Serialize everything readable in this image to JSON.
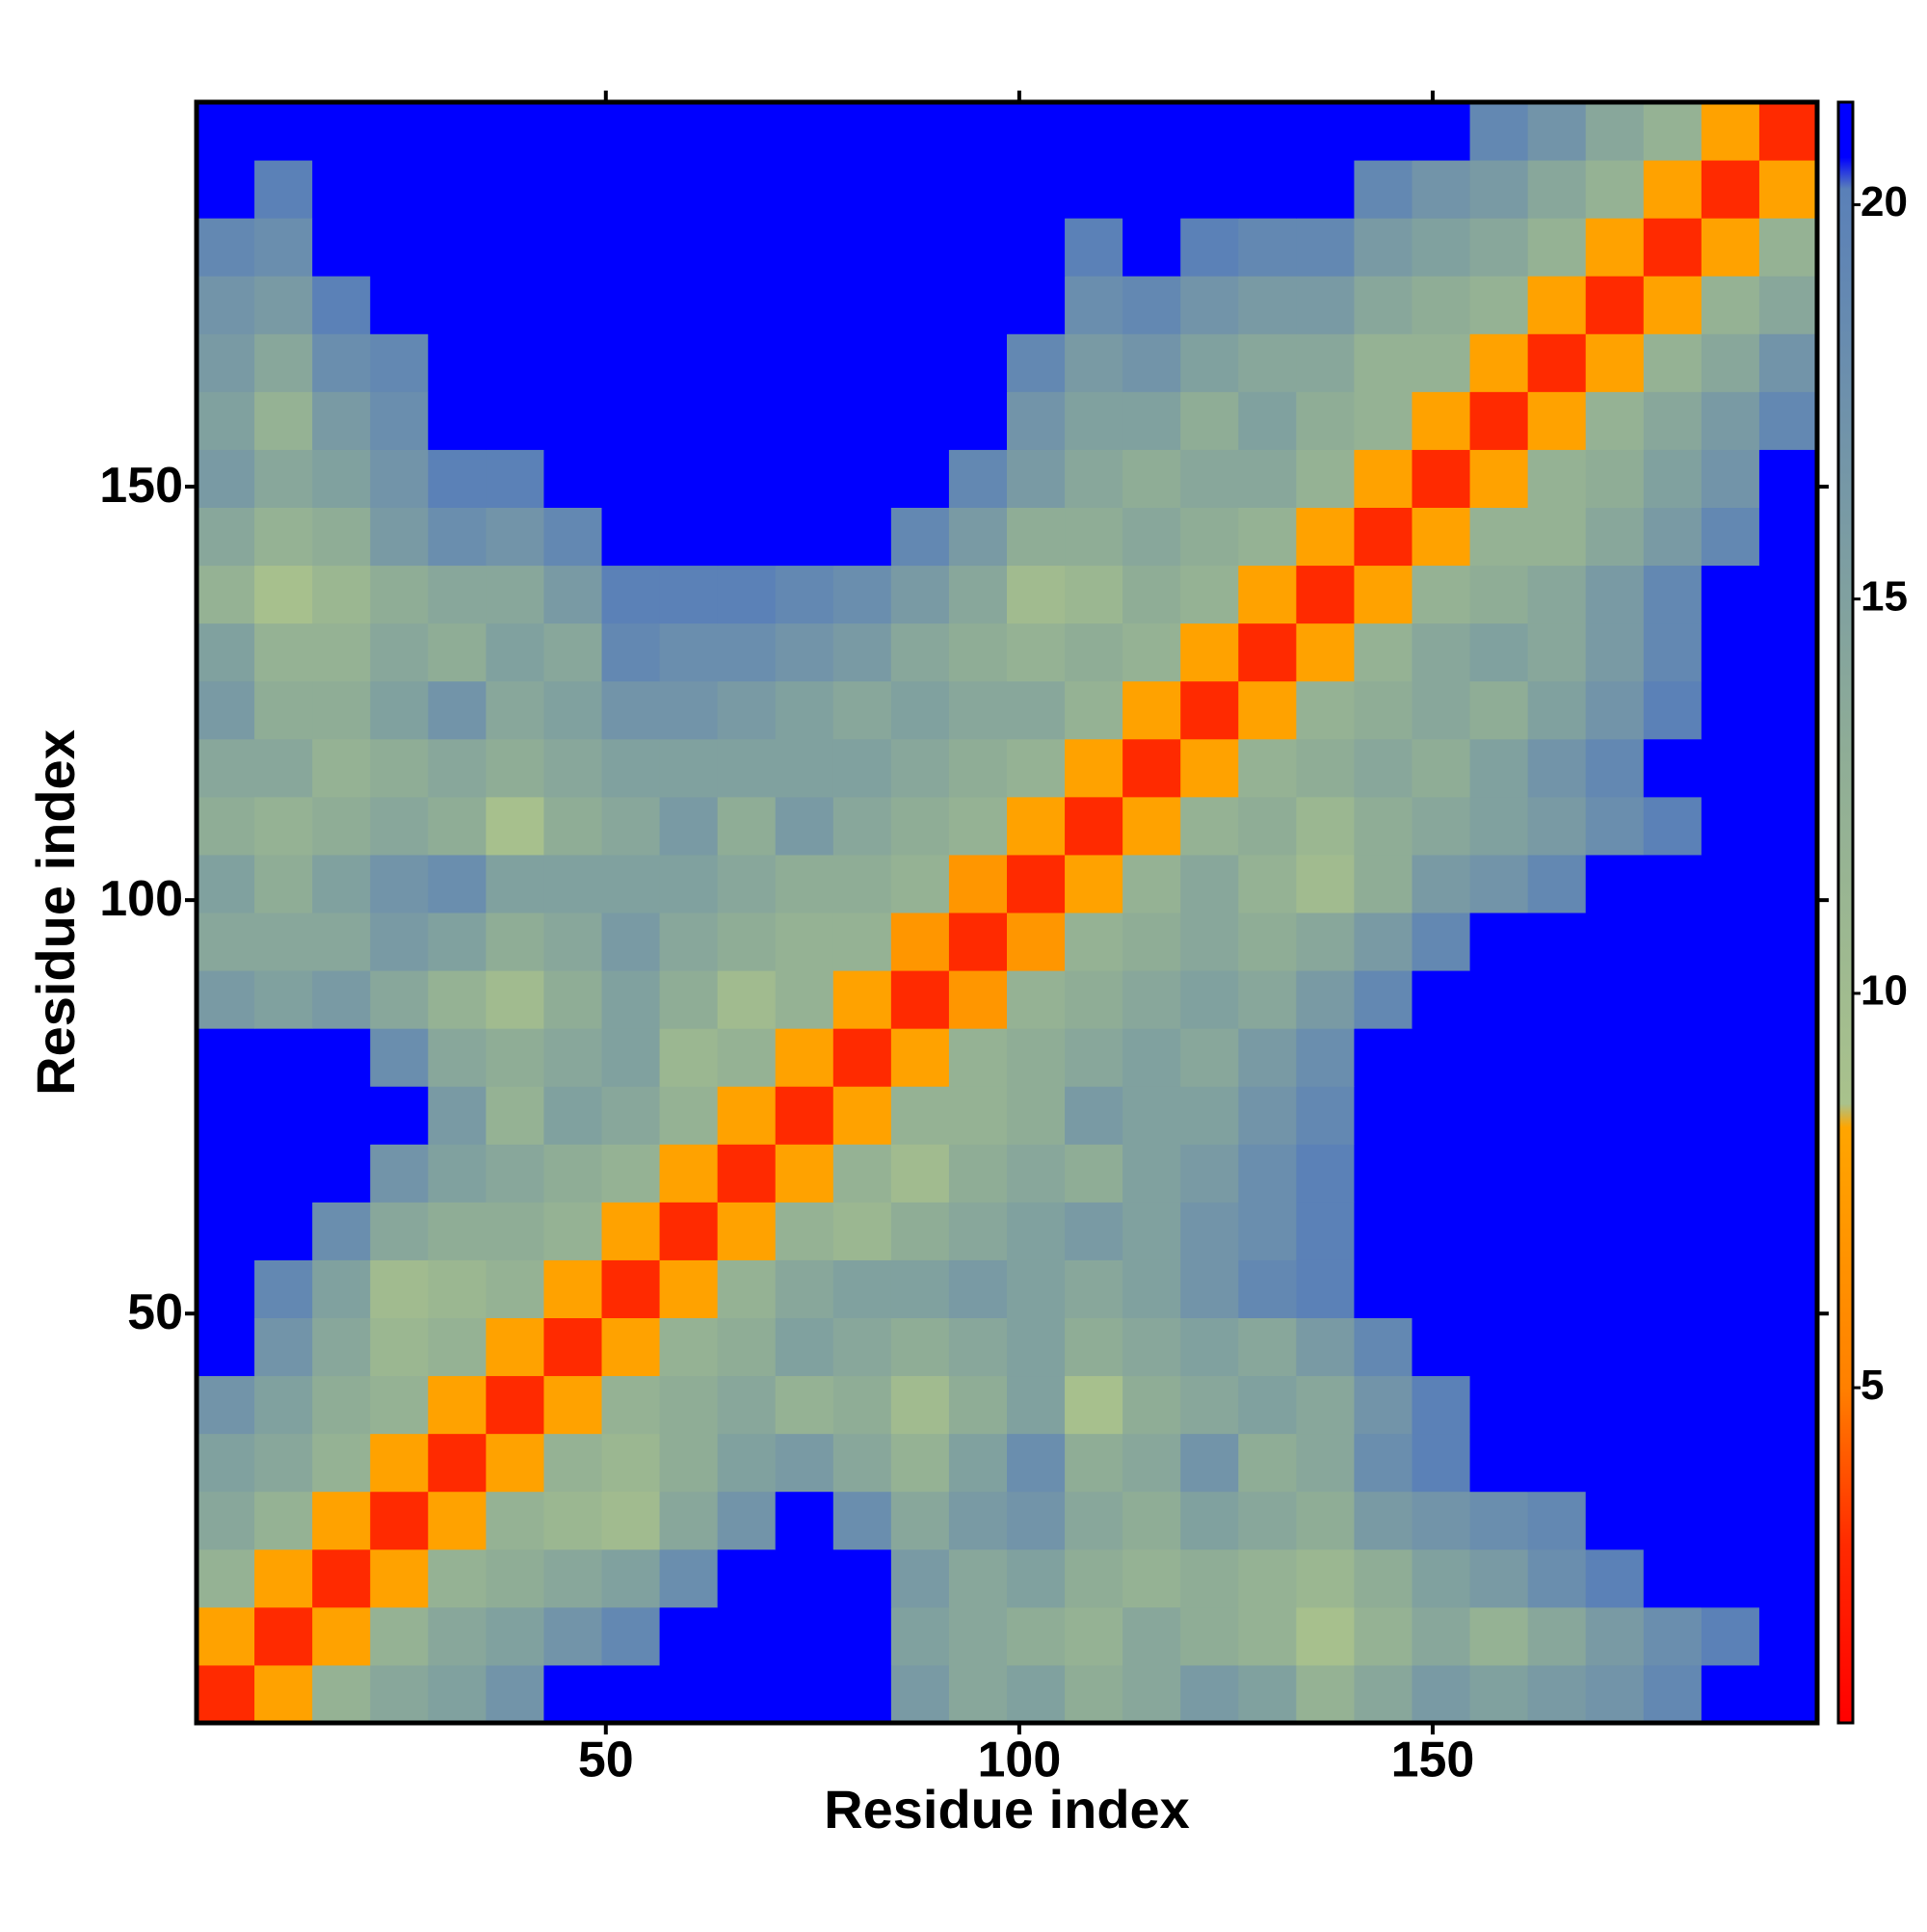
{
  "chart_data": {
    "type": "heatmap",
    "x_label": "Residue index",
    "y_label": "Residue index",
    "xlim": [
      0.5,
      196.5
    ],
    "ylim": [
      0.5,
      196.5
    ],
    "xticks": [
      50,
      100,
      150
    ],
    "yticks": [
      50,
      100,
      150
    ],
    "zlim": [
      0.75,
      21.3
    ],
    "zticks": [
      5,
      10,
      15,
      20
    ],
    "colorscale": [
      [
        0.75,
        "#ff0000"
      ],
      [
        3,
        "#ff2a00"
      ],
      [
        5,
        "#ff8000"
      ],
      [
        8.3,
        "#ffa500"
      ],
      [
        8.6,
        "#a9c28c"
      ],
      [
        13,
        "#8fad96"
      ],
      [
        20.2,
        "#5a80b8"
      ],
      [
        20.6,
        "#0000ff"
      ],
      [
        21.3,
        "#0000ff"
      ]
    ],
    "x": [
      4,
      11,
      18,
      25,
      32,
      39,
      46,
      53,
      60,
      67,
      74,
      81,
      88,
      95,
      102,
      109,
      116,
      123,
      130,
      137,
      144,
      151,
      158,
      165,
      172,
      179,
      186,
      193
    ],
    "y": [
      4,
      11,
      18,
      25,
      32,
      39,
      46,
      53,
      60,
      67,
      74,
      81,
      88,
      95,
      102,
      109,
      116,
      123,
      130,
      137,
      144,
      151,
      158,
      165,
      172,
      179,
      186,
      193
    ],
    "z": [
      [
        3,
        8,
        12,
        14,
        15,
        17,
        21,
        21,
        21,
        21,
        21,
        21,
        16,
        14,
        15,
        13,
        14,
        16,
        15,
        12,
        14,
        16,
        15,
        16,
        17,
        19,
        21,
        21
      ],
      [
        8,
        3,
        8,
        12,
        14,
        15,
        17,
        19,
        21,
        21,
        21,
        21,
        15,
        14,
        13,
        12,
        14,
        13,
        12,
        9,
        12,
        14,
        12,
        14,
        16,
        18,
        20,
        21
      ],
      [
        12,
        8,
        3,
        8,
        12,
        13,
        14,
        15,
        18,
        21,
        21,
        21,
        16,
        14,
        15,
        13,
        12,
        13,
        12,
        11,
        13,
        15,
        16,
        18,
        20,
        21,
        21,
        21
      ],
      [
        14,
        12,
        8,
        3,
        8,
        12,
        11,
        10,
        14,
        17,
        21,
        18,
        14,
        16,
        17,
        14,
        13,
        15,
        14,
        13,
        16,
        17,
        18,
        19,
        21,
        21,
        21,
        21
      ],
      [
        15,
        14,
        12,
        8,
        3,
        8,
        12,
        11,
        13,
        15,
        16,
        14,
        12,
        15,
        18,
        13,
        14,
        17,
        13,
        14,
        18,
        20,
        21,
        21,
        21,
        21,
        21,
        21
      ],
      [
        17,
        15,
        13,
        12,
        8,
        3,
        8,
        12,
        13,
        14,
        12,
        13,
        10,
        13,
        15,
        9,
        13,
        14,
        15,
        14,
        17,
        20,
        21,
        21,
        21,
        21,
        21,
        21
      ],
      [
        21,
        17,
        14,
        11,
        12,
        8,
        3,
        8,
        12,
        13,
        15,
        14,
        13,
        14,
        15,
        13,
        14,
        15,
        14,
        16,
        19,
        21,
        21,
        21,
        21,
        21,
        21,
        21
      ],
      [
        21,
        19,
        15,
        10,
        11,
        12,
        8,
        3,
        8,
        12,
        14,
        15,
        15,
        16,
        15,
        14,
        15,
        17,
        19,
        20,
        21,
        21,
        21,
        21,
        21,
        21,
        21,
        21
      ],
      [
        21,
        21,
        18,
        14,
        13,
        13,
        12,
        8,
        3,
        8,
        12,
        11,
        13,
        14,
        15,
        16,
        15,
        17,
        18,
        20,
        21,
        21,
        21,
        21,
        21,
        21,
        21,
        21
      ],
      [
        21,
        21,
        21,
        17,
        15,
        14,
        13,
        12,
        8,
        3,
        8,
        12,
        10,
        13,
        14,
        13,
        15,
        16,
        18,
        20,
        21,
        21,
        21,
        21,
        21,
        21,
        21,
        21
      ],
      [
        21,
        21,
        21,
        21,
        16,
        12,
        15,
        14,
        12,
        8,
        3,
        8,
        12,
        12,
        13,
        16,
        15,
        15,
        17,
        19,
        21,
        21,
        21,
        21,
        21,
        21,
        21,
        21
      ],
      [
        21,
        21,
        21,
        18,
        14,
        13,
        14,
        15,
        11,
        12,
        8,
        3,
        8,
        12,
        13,
        14,
        15,
        14,
        16,
        18,
        21,
        21,
        21,
        21,
        21,
        21,
        21,
        21
      ],
      [
        16,
        15,
        16,
        14,
        12,
        10,
        13,
        15,
        13,
        10,
        12,
        8,
        3,
        7,
        12,
        13,
        14,
        15,
        14,
        16,
        19,
        21,
        21,
        21,
        21,
        21,
        21,
        21
      ],
      [
        14,
        14,
        14,
        16,
        15,
        13,
        14,
        16,
        14,
        13,
        12,
        12,
        7,
        3,
        7,
        12,
        13,
        14,
        13,
        14,
        16,
        19,
        21,
        21,
        21,
        21,
        21,
        21
      ],
      [
        15,
        13,
        15,
        17,
        18,
        15,
        15,
        15,
        15,
        14,
        13,
        13,
        12,
        7,
        3,
        8,
        12,
        14,
        12,
        10,
        13,
        16,
        17,
        19,
        21,
        21,
        21,
        21
      ],
      [
        13,
        12,
        13,
        14,
        13,
        9,
        13,
        14,
        16,
        13,
        16,
        14,
        13,
        12,
        8,
        3,
        8,
        12,
        13,
        11,
        13,
        14,
        15,
        16,
        18,
        20,
        21,
        21
      ],
      [
        14,
        14,
        12,
        13,
        14,
        13,
        14,
        15,
        15,
        15,
        15,
        15,
        14,
        13,
        12,
        8,
        3,
        8,
        12,
        13,
        14,
        13,
        15,
        17,
        19,
        21,
        21,
        21
      ],
      [
        16,
        13,
        13,
        15,
        17,
        14,
        15,
        17,
        17,
        16,
        15,
        14,
        15,
        14,
        14,
        12,
        8,
        3,
        8,
        12,
        13,
        14,
        13,
        15,
        17,
        20,
        21,
        21
      ],
      [
        15,
        12,
        12,
        14,
        13,
        15,
        14,
        19,
        18,
        18,
        17,
        16,
        14,
        13,
        12,
        13,
        12,
        8,
        3,
        8,
        12,
        14,
        15,
        14,
        16,
        19,
        21,
        21
      ],
      [
        12,
        9,
        11,
        13,
        14,
        14,
        16,
        20,
        20,
        20,
        19,
        18,
        16,
        14,
        10,
        11,
        13,
        12,
        8,
        3,
        8,
        12,
        13,
        14,
        16,
        19,
        21,
        21
      ],
      [
        14,
        12,
        13,
        16,
        18,
        17,
        19,
        21,
        21,
        21,
        21,
        21,
        19,
        16,
        13,
        13,
        14,
        13,
        12,
        8,
        3,
        8,
        12,
        12,
        14,
        16,
        19,
        21
      ],
      [
        16,
        14,
        15,
        17,
        20,
        20,
        21,
        21,
        21,
        21,
        21,
        21,
        21,
        19,
        16,
        14,
        13,
        14,
        14,
        12,
        8,
        3,
        8,
        12,
        13,
        15,
        17,
        21
      ],
      [
        15,
        12,
        16,
        18,
        21,
        21,
        21,
        21,
        21,
        21,
        21,
        21,
        21,
        21,
        17,
        15,
        15,
        13,
        15,
        13,
        12,
        8,
        3,
        8,
        12,
        14,
        16,
        19
      ],
      [
        16,
        14,
        18,
        19,
        21,
        21,
        21,
        21,
        21,
        21,
        21,
        21,
        21,
        21,
        19,
        16,
        17,
        15,
        14,
        14,
        12,
        12,
        8,
        3,
        8,
        12,
        14,
        17
      ],
      [
        17,
        16,
        20,
        21,
        21,
        21,
        21,
        21,
        21,
        21,
        21,
        21,
        21,
        21,
        21,
        18,
        19,
        17,
        16,
        16,
        14,
        13,
        12,
        8,
        3,
        8,
        12,
        14
      ],
      [
        19,
        18,
        21,
        21,
        21,
        21,
        21,
        21,
        21,
        21,
        21,
        21,
        21,
        21,
        21,
        20,
        21,
        20,
        19,
        19,
        16,
        15,
        14,
        12,
        8,
        3,
        8,
        12
      ],
      [
        21,
        20,
        21,
        21,
        21,
        21,
        21,
        21,
        21,
        21,
        21,
        21,
        21,
        21,
        21,
        21,
        21,
        21,
        21,
        21,
        19,
        17,
        16,
        14,
        12,
        8,
        3,
        8
      ],
      [
        21,
        21,
        21,
        21,
        21,
        21,
        21,
        21,
        21,
        21,
        21,
        21,
        21,
        21,
        21,
        21,
        21,
        21,
        21,
        21,
        21,
        21,
        19,
        17,
        14,
        12,
        8,
        3
      ]
    ]
  }
}
